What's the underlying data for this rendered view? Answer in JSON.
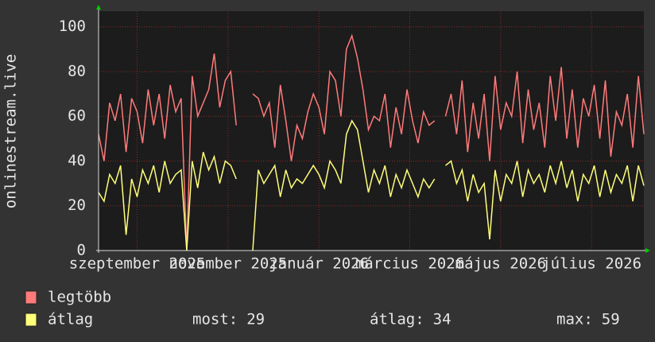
{
  "chart_data": {
    "type": "line",
    "y_label": "onlinestream.live",
    "ylim": [
      0,
      107
    ],
    "yticks": [
      0,
      20,
      40,
      60,
      80,
      100
    ],
    "xlim": [
      0,
      99
    ],
    "xticks": [
      {
        "value": 7,
        "label": "szeptember 2025"
      },
      {
        "value": 23.5,
        "label": "november 2025"
      },
      {
        "value": 40,
        "label": "január 2026"
      },
      {
        "value": 56.5,
        "label": "március 2026"
      },
      {
        "value": 73,
        "label": "május 2026"
      },
      {
        "value": 89.5,
        "label": "július 2026"
      }
    ],
    "grid": true,
    "series": [
      {
        "name": "legtöbb",
        "color": "#ff7a7a",
        "values": [
          52,
          40,
          66,
          58,
          70,
          44,
          68,
          62,
          48,
          72,
          56,
          70,
          50,
          74,
          62,
          68,
          0,
          78,
          60,
          66,
          72,
          88,
          64,
          76,
          80,
          56,
          null,
          null,
          70,
          68,
          60,
          66,
          46,
          74,
          58,
          40,
          56,
          50,
          62,
          70,
          64,
          52,
          80,
          76,
          60,
          90,
          96,
          86,
          72,
          54,
          60,
          58,
          70,
          46,
          64,
          52,
          72,
          58,
          48,
          62,
          56,
          58,
          null,
          60,
          70,
          52,
          76,
          44,
          66,
          50,
          70,
          40,
          78,
          54,
          66,
          60,
          80,
          48,
          72,
          54,
          66,
          46,
          78,
          58,
          82,
          50,
          72,
          46,
          68,
          60,
          74,
          50,
          76,
          42,
          62,
          56,
          70,
          46,
          78,
          52
        ]
      },
      {
        "name": "átlag",
        "color": "#ffff7a",
        "values": [
          26,
          22,
          34,
          30,
          38,
          7,
          32,
          24,
          36,
          30,
          38,
          26,
          40,
          30,
          34,
          36,
          0,
          40,
          28,
          44,
          36,
          42,
          30,
          40,
          38,
          32,
          null,
          null,
          0,
          36,
          30,
          34,
          38,
          24,
          36,
          28,
          32,
          30,
          34,
          38,
          34,
          28,
          40,
          36,
          30,
          52,
          58,
          54,
          40,
          26,
          36,
          30,
          38,
          24,
          34,
          28,
          36,
          30,
          24,
          32,
          28,
          32,
          null,
          38,
          40,
          30,
          36,
          22,
          34,
          26,
          30,
          5,
          36,
          22,
          34,
          30,
          40,
          24,
          36,
          30,
          34,
          26,
          38,
          30,
          40,
          28,
          36,
          22,
          34,
          30,
          38,
          24,
          36,
          26,
          34,
          30,
          38,
          22,
          38,
          29
        ]
      }
    ],
    "stats": [
      {
        "label": "most:",
        "value": 29
      },
      {
        "label": "átlag:",
        "value": 34
      },
      {
        "label": "max:",
        "value": 59
      }
    ]
  }
}
